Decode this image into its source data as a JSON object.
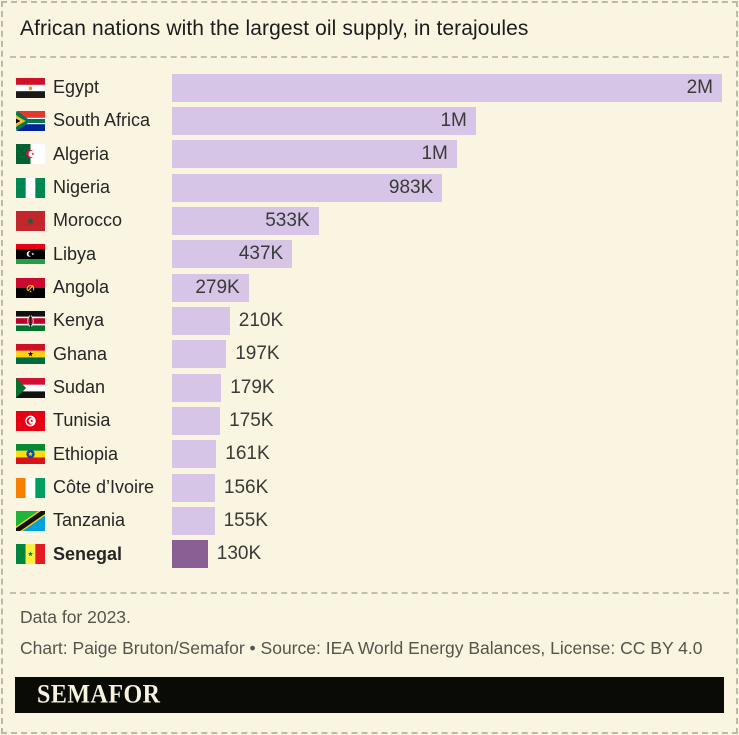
{
  "page": {
    "title": "African nations with the largest oil supply, in terajoules",
    "background_color": "#f9f5e1",
    "border_color": "#bdb9aa"
  },
  "chart_data": {
    "type": "bar",
    "orientation": "horizontal",
    "title": "African nations with the largest oil supply, in terajoules",
    "unit": "terajoules",
    "xlim": [
      0,
      2000000
    ],
    "grid": false,
    "legend": "none",
    "bar_color": "#d6c5e6",
    "highlight_bar_color": "#8a5f94",
    "value_label_color": "#3a3a38",
    "highlighted_category": "Senegal",
    "rows": [
      {
        "key": "egypt",
        "country": "Egypt",
        "value": 2000000,
        "label": "2M",
        "highlight": false
      },
      {
        "key": "south-africa",
        "country": "South Africa",
        "value": 1105000,
        "label": "1M",
        "highlight": false
      },
      {
        "key": "algeria",
        "country": "Algeria",
        "value": 1036000,
        "label": "1M",
        "highlight": false
      },
      {
        "key": "nigeria",
        "country": "Nigeria",
        "value": 983000,
        "label": "983K",
        "highlight": false
      },
      {
        "key": "morocco",
        "country": "Morocco",
        "value": 533000,
        "label": "533K",
        "highlight": false
      },
      {
        "key": "libya",
        "country": "Libya",
        "value": 437000,
        "label": "437K",
        "highlight": false
      },
      {
        "key": "angola",
        "country": "Angola",
        "value": 279000,
        "label": "279K",
        "highlight": false
      },
      {
        "key": "kenya",
        "country": "Kenya",
        "value": 210000,
        "label": "210K",
        "highlight": false
      },
      {
        "key": "ghana",
        "country": "Ghana",
        "value": 197000,
        "label": "197K",
        "highlight": false
      },
      {
        "key": "sudan",
        "country": "Sudan",
        "value": 179000,
        "label": "179K",
        "highlight": false
      },
      {
        "key": "tunisia",
        "country": "Tunisia",
        "value": 175000,
        "label": "175K",
        "highlight": false
      },
      {
        "key": "ethiopia",
        "country": "Ethiopia",
        "value": 161000,
        "label": "161K",
        "highlight": false
      },
      {
        "key": "cote-divoire",
        "country": "Côte d’Ivoire",
        "value": 156000,
        "label": "156K",
        "highlight": false
      },
      {
        "key": "tanzania",
        "country": "Tanzania",
        "value": 155000,
        "label": "155K",
        "highlight": false
      },
      {
        "key": "senegal",
        "country": "Senegal",
        "value": 130000,
        "label": "130K",
        "highlight": true
      }
    ]
  },
  "footer": {
    "note": "Data for 2023.",
    "credit": "Chart: Paige Bruton/Semafor • Source: IEA World Energy Balances, License: CC BY 4.0",
    "logo": "SEMAFOR"
  }
}
